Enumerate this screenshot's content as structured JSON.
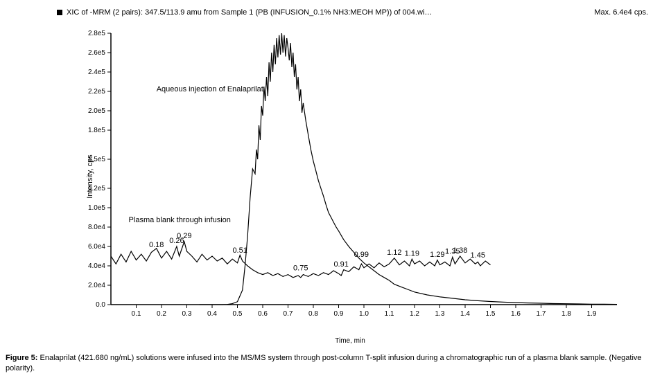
{
  "header": {
    "title": "XIC of -MRM (2 pairs): 347.5/113.9 amu from Sample 1 (PB (INFUSION_0.1% NH3:MEOH MP)) of 004.wi…",
    "max_label": "Max. 6.4e4 cps."
  },
  "chart": {
    "type": "line",
    "xlim": [
      0,
      2.0
    ],
    "ylim": [
      0,
      280000.0
    ],
    "xlabel": "Time, min",
    "ylabel": "Intensity, cps",
    "xticks": [
      0.1,
      0.2,
      0.3,
      0.4,
      0.5,
      0.6,
      0.7,
      0.8,
      0.9,
      1.0,
      1.1,
      1.2,
      1.3,
      1.4,
      1.5,
      1.6,
      1.7,
      1.8,
      1.9
    ],
    "xtick_labels": [
      "0.1",
      "0.2",
      "0.3",
      "0.4",
      "0.5",
      "0.6",
      "0.7",
      "0.8",
      "0.9",
      "1.0",
      "1.1",
      "1.2",
      "1.3",
      "1.4",
      "1.5",
      "1.6",
      "1.7",
      "1.8",
      "1.9"
    ],
    "yticks": [
      0,
      20000.0,
      40000.0,
      60000.0,
      80000.0,
      100000.0,
      120000.0,
      150000.0,
      180000.0,
      200000.0,
      220000.0,
      240000.0,
      260000.0,
      280000.0
    ],
    "ytick_labels": [
      "0.0",
      "2.0e4",
      "4.0e4",
      "6.0e4",
      "8.0e4",
      "1.0e5",
      "1.2e5",
      "1.5e5",
      "1.8e5",
      "2.0e5",
      "2.2e5",
      "2.4e5",
      "2.6e5",
      "2.8e5"
    ],
    "axis_color": "#000000",
    "background_color": "#ffffff",
    "series_color": "#000000",
    "series_width": 1.2,
    "title_fontsize": 11,
    "tick_fontsize": 10,
    "label_fontsize": 11,
    "legend_marker_color": "#000000",
    "series": {
      "aqueous": {
        "label": "Aqueous injection of Enalaprilat",
        "label_pos": {
          "x": 0.18,
          "y": 220000.0
        },
        "points": [
          [
            0.35,
            0
          ],
          [
            0.38,
            0
          ],
          [
            0.4,
            0
          ],
          [
            0.42,
            0
          ],
          [
            0.44,
            0
          ],
          [
            0.46,
            200
          ],
          [
            0.48,
            1000
          ],
          [
            0.5,
            3000
          ],
          [
            0.52,
            15000
          ],
          [
            0.53,
            40000
          ],
          [
            0.54,
            70000
          ],
          [
            0.55,
            110000
          ],
          [
            0.56,
            140000
          ],
          [
            0.57,
            135000
          ],
          [
            0.575,
            160000
          ],
          [
            0.58,
            150000
          ],
          [
            0.585,
            185000
          ],
          [
            0.59,
            170000
          ],
          [
            0.595,
            205000
          ],
          [
            0.6,
            195000
          ],
          [
            0.605,
            225000
          ],
          [
            0.61,
            210000
          ],
          [
            0.615,
            235000
          ],
          [
            0.62,
            215000
          ],
          [
            0.625,
            250000
          ],
          [
            0.63,
            230000
          ],
          [
            0.635,
            260000
          ],
          [
            0.64,
            240000
          ],
          [
            0.645,
            268000
          ],
          [
            0.65,
            248000
          ],
          [
            0.655,
            275000
          ],
          [
            0.66,
            255000
          ],
          [
            0.665,
            278000
          ],
          [
            0.67,
            258000
          ],
          [
            0.675,
            280000
          ],
          [
            0.68,
            260000
          ],
          [
            0.685,
            278000
          ],
          [
            0.69,
            256000
          ],
          [
            0.695,
            275000
          ],
          [
            0.7,
            265000
          ],
          [
            0.705,
            252000
          ],
          [
            0.71,
            270000
          ],
          [
            0.715,
            245000
          ],
          [
            0.72,
            260000
          ],
          [
            0.725,
            235000
          ],
          [
            0.73,
            248000
          ],
          [
            0.735,
            222000
          ],
          [
            0.74,
            235000
          ],
          [
            0.745,
            210000
          ],
          [
            0.75,
            222000
          ],
          [
            0.755,
            198000
          ],
          [
            0.76,
            208000
          ],
          [
            0.77,
            190000
          ],
          [
            0.78,
            175000
          ],
          [
            0.79,
            160000
          ],
          [
            0.8,
            148000
          ],
          [
            0.81,
            138000
          ],
          [
            0.82,
            128000
          ],
          [
            0.83,
            120000
          ],
          [
            0.84,
            112000
          ],
          [
            0.85,
            103000
          ],
          [
            0.86,
            95000
          ],
          [
            0.87,
            90000
          ],
          [
            0.88,
            85000
          ],
          [
            0.89,
            80000
          ],
          [
            0.9,
            76000
          ],
          [
            0.92,
            67000
          ],
          [
            0.94,
            60000
          ],
          [
            0.96,
            54000
          ],
          [
            0.98,
            48000
          ],
          [
            1.0,
            43000
          ],
          [
            1.02,
            39000
          ],
          [
            1.04,
            35000
          ],
          [
            1.06,
            31000
          ],
          [
            1.08,
            28000
          ],
          [
            1.1,
            25000
          ],
          [
            1.12,
            21000
          ],
          [
            1.15,
            18000
          ],
          [
            1.18,
            15000
          ],
          [
            1.2,
            13000
          ],
          [
            1.25,
            10000
          ],
          [
            1.3,
            8000
          ],
          [
            1.35,
            6500
          ],
          [
            1.4,
            5000
          ],
          [
            1.45,
            4000
          ],
          [
            1.5,
            3200
          ],
          [
            1.55,
            2600
          ],
          [
            1.6,
            2100
          ],
          [
            1.65,
            1700
          ],
          [
            1.7,
            1400
          ],
          [
            1.75,
            1100
          ],
          [
            1.8,
            900
          ],
          [
            1.85,
            700
          ],
          [
            1.9,
            500
          ],
          [
            1.95,
            400
          ],
          [
            2.0,
            300
          ]
        ]
      },
      "plasma": {
        "label": "Plasma blank through infusion",
        "label_pos": {
          "x": 0.07,
          "y": 85000.0
        },
        "points": [
          [
            0.0,
            50000
          ],
          [
            0.02,
            42000
          ],
          [
            0.04,
            52000
          ],
          [
            0.06,
            44000
          ],
          [
            0.08,
            55000
          ],
          [
            0.1,
            46000
          ],
          [
            0.12,
            52000
          ],
          [
            0.14,
            45000
          ],
          [
            0.16,
            54000
          ],
          [
            0.18,
            58000
          ],
          [
            0.2,
            48000
          ],
          [
            0.22,
            55000
          ],
          [
            0.24,
            47000
          ],
          [
            0.26,
            60000
          ],
          [
            0.27,
            50000
          ],
          [
            0.29,
            65000
          ],
          [
            0.3,
            55000
          ],
          [
            0.32,
            50000
          ],
          [
            0.34,
            44000
          ],
          [
            0.36,
            52000
          ],
          [
            0.38,
            46000
          ],
          [
            0.4,
            50000
          ],
          [
            0.42,
            45000
          ],
          [
            0.44,
            48000
          ],
          [
            0.46,
            42000
          ],
          [
            0.48,
            47000
          ],
          [
            0.5,
            43000
          ],
          [
            0.51,
            51000
          ],
          [
            0.52,
            45000
          ],
          [
            0.54,
            40000
          ],
          [
            0.56,
            36000
          ],
          [
            0.58,
            33000
          ],
          [
            0.6,
            31000
          ],
          [
            0.62,
            33000
          ],
          [
            0.64,
            30000
          ],
          [
            0.66,
            32000
          ],
          [
            0.68,
            29000
          ],
          [
            0.7,
            31000
          ],
          [
            0.72,
            28000
          ],
          [
            0.74,
            30000
          ],
          [
            0.75,
            28000
          ],
          [
            0.76,
            31000
          ],
          [
            0.78,
            29000
          ],
          [
            0.8,
            32000
          ],
          [
            0.82,
            30000
          ],
          [
            0.84,
            33000
          ],
          [
            0.86,
            31000
          ],
          [
            0.88,
            35000
          ],
          [
            0.9,
            32000
          ],
          [
            0.91,
            30000
          ],
          [
            0.92,
            36000
          ],
          [
            0.94,
            34000
          ],
          [
            0.96,
            39000
          ],
          [
            0.98,
            36000
          ],
          [
            0.99,
            42000
          ],
          [
            1.0,
            38000
          ],
          [
            1.02,
            42000
          ],
          [
            1.04,
            38000
          ],
          [
            1.06,
            43000
          ],
          [
            1.08,
            39000
          ],
          [
            1.1,
            42000
          ],
          [
            1.12,
            48000
          ],
          [
            1.14,
            41000
          ],
          [
            1.16,
            45000
          ],
          [
            1.18,
            40000
          ],
          [
            1.19,
            47000
          ],
          [
            1.2,
            42000
          ],
          [
            1.22,
            45000
          ],
          [
            1.24,
            40000
          ],
          [
            1.26,
            44000
          ],
          [
            1.28,
            40000
          ],
          [
            1.29,
            46000
          ],
          [
            1.3,
            41000
          ],
          [
            1.32,
            44000
          ],
          [
            1.34,
            40000
          ],
          [
            1.35,
            49000
          ],
          [
            1.36,
            42000
          ],
          [
            1.38,
            50000
          ],
          [
            1.4,
            43000
          ],
          [
            1.42,
            47000
          ],
          [
            1.44,
            42000
          ],
          [
            1.45,
            44000
          ],
          [
            1.46,
            40000
          ],
          [
            1.48,
            45000
          ],
          [
            1.5,
            41000
          ]
        ],
        "peak_labels": [
          {
            "x": 0.18,
            "y": 58000,
            "text": "0.18"
          },
          {
            "x": 0.26,
            "y": 62000,
            "text": "0.26"
          },
          {
            "x": 0.29,
            "y": 67000,
            "text": "0.29"
          },
          {
            "x": 0.51,
            "y": 52000,
            "text": "0.51"
          },
          {
            "x": 0.75,
            "y": 34000,
            "text": "0.75"
          },
          {
            "x": 0.91,
            "y": 38000,
            "text": "0.91"
          },
          {
            "x": 0.99,
            "y": 48000,
            "text": "0.99"
          },
          {
            "x": 1.12,
            "y": 50000,
            "text": "1.12"
          },
          {
            "x": 1.19,
            "y": 49000,
            "text": "1.19"
          },
          {
            "x": 1.29,
            "y": 48000,
            "text": "1.29"
          },
          {
            "x": 1.35,
            "y": 51000,
            "text": "1.35"
          },
          {
            "x": 1.38,
            "y": 52000,
            "text": "1.38"
          },
          {
            "x": 1.45,
            "y": 47000,
            "text": "1.45"
          }
        ]
      }
    }
  },
  "caption": {
    "bold": "Figure 5:",
    "text": " Enalaprilat (421.680 ng/mL) solutions were infused into the MS/MS system through post-column T-split infusion during a chromatographic run of a plasma blank sample. (Negative polarity)."
  }
}
